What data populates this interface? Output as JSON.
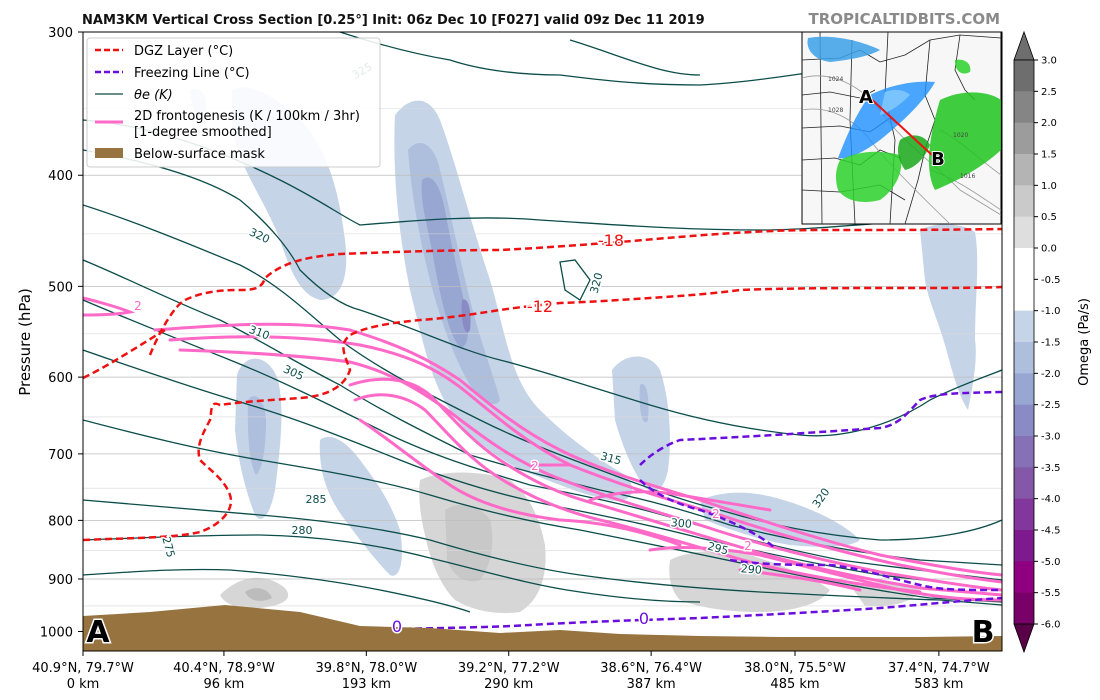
{
  "header": {
    "title": "NAM3KM Vertical Cross Section [0.25°] Init: 06z Dec 10 [F027] valid 09z Dec 11 2019",
    "site": "TROPICALTIDBITS.COM"
  },
  "chart_data": {
    "type": "cross-section",
    "ylabel": "Pressure (hPa)",
    "y_axis": {
      "scale": "log",
      "range": [
        1040,
        300
      ],
      "ticks": [
        300,
        400,
        500,
        600,
        700,
        800,
        900,
        1000
      ]
    },
    "x_ticks": [
      {
        "coord": "40.9°N, 79.7°W",
        "dist": "0 km",
        "km": 0
      },
      {
        "coord": "40.4°N, 78.9°W",
        "dist": "96 km",
        "km": 96
      },
      {
        "coord": "39.8°N, 78.0°W",
        "dist": "193 km",
        "km": 193
      },
      {
        "coord": "39.2°N, 77.2°W",
        "dist": "290 km",
        "km": 290
      },
      {
        "coord": "38.6°N, 76.4°W",
        "dist": "387 km",
        "km": 387
      },
      {
        "coord": "38.0°N, 75.5°W",
        "dist": "485 km",
        "km": 485
      },
      {
        "coord": "37.4°N, 74.7°W",
        "dist": "583 km",
        "km": 583
      }
    ],
    "x_range_km": [
      0,
      626
    ],
    "endpoint_labels": {
      "left": "A",
      "right": "B"
    },
    "legend": {
      "position": "top-left",
      "items": [
        {
          "label": "DGZ Layer (°C)",
          "color": "#ee1111",
          "style": "dashed"
        },
        {
          "label": "Freezing Line (°C)",
          "color": "#6a0ddd",
          "style": "dashed"
        },
        {
          "label": "θe (K)",
          "color": "#0b4d4a",
          "style": "solid"
        },
        {
          "label": "2D frontogenesis (K / 100km / 3hr)",
          "label2": "[1-degree smoothed]",
          "color": "#ff6ac8",
          "style": "solid"
        },
        {
          "label": "Below-surface mask",
          "color": "#9a7440",
          "style": "patch"
        }
      ]
    },
    "dgz_labels": [
      "-18",
      "-12"
    ],
    "freezing_labels": [
      "0",
      "0"
    ],
    "theta_e_labels": [
      "325",
      "320",
      "320",
      "320",
      "315",
      "310",
      "305",
      "300",
      "295",
      "290",
      "285",
      "280",
      "275"
    ],
    "frontogenesis_labels": [
      "2",
      "2",
      "2",
      "2"
    ],
    "colorbar": {
      "label": "Omega (Pa/s)",
      "ticks": [
        "3.0",
        "2.5",
        "2.0",
        "1.5",
        "1.0",
        "0.5",
        "0.0",
        "-0.5",
        "-1.0",
        "-1.5",
        "-2.0",
        "-2.5",
        "-3.0",
        "-3.5",
        "-4.0",
        "-4.5",
        "-5.0",
        "-5.5",
        "-6.0"
      ],
      "colors": [
        "#6e6e6e",
        "#858585",
        "#9c9c9c",
        "#b4b4b4",
        "#cacaca",
        "#dedede",
        "#ffffff",
        "#ffffff",
        "#c6d4e8",
        "#aebedd",
        "#98a6d2",
        "#8a8bc4",
        "#8671b6",
        "#8457a8",
        "#82379c",
        "#7c1a8e",
        "#8e007f",
        "#790069",
        "#5a0049"
      ]
    },
    "inset_map": {
      "point_a": "A",
      "point_b": "B",
      "pressure_labels": [
        "1024",
        "1028",
        "1020",
        "1016"
      ]
    }
  }
}
